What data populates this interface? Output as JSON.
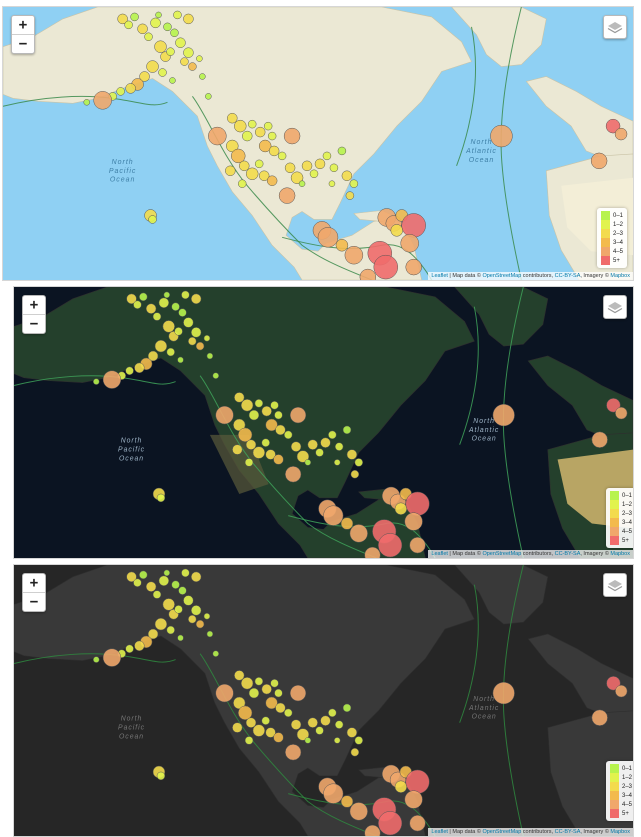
{
  "zoom": {
    "in_label": "+",
    "out_label": "−"
  },
  "layers_control": {
    "icon": "layers-icon"
  },
  "legend": {
    "items": [
      {
        "label": "0–1",
        "color": "#b7f34d"
      },
      {
        "label": "1–2",
        "color": "#e1f34d"
      },
      {
        "label": "2–3",
        "color": "#f3db4d"
      },
      {
        "label": "3–4",
        "color": "#f3ba4d"
      },
      {
        "label": "4–5",
        "color": "#f0a76b"
      },
      {
        "label": "5+",
        "color": "#f06b6b"
      }
    ]
  },
  "attribution": {
    "leaflet": "Leaflet",
    "sep": " | Map data © ",
    "osm": "OpenStreetMap",
    "contrib": " contributors, ",
    "license": "CC-BY-SA",
    "imagery": ", Imagery © ",
    "mapbox": "Mapbox"
  },
  "ocean_labels": {
    "north_pacific": [
      "North",
      "Pacific",
      "Ocean"
    ],
    "north_atlantic": [
      "North",
      "Atlantic",
      "Ocean"
    ]
  },
  "panels": [
    {
      "name": "light",
      "water": "#8fd0f3",
      "land": "#ebe8d4",
      "text_color": "#3e7fa6"
    },
    {
      "name": "satellite",
      "water": "#0b1422",
      "land": "#24402c",
      "text_color": "#9fb5c8"
    },
    {
      "name": "dark",
      "water": "#262626",
      "land": "#393939",
      "text_color": "#777777"
    }
  ],
  "magnitude_colors": [
    "#b7f34d",
    "#e1f34d",
    "#f3db4d",
    "#f3ba4d",
    "#f0a76b",
    "#f06b6b"
  ]
}
